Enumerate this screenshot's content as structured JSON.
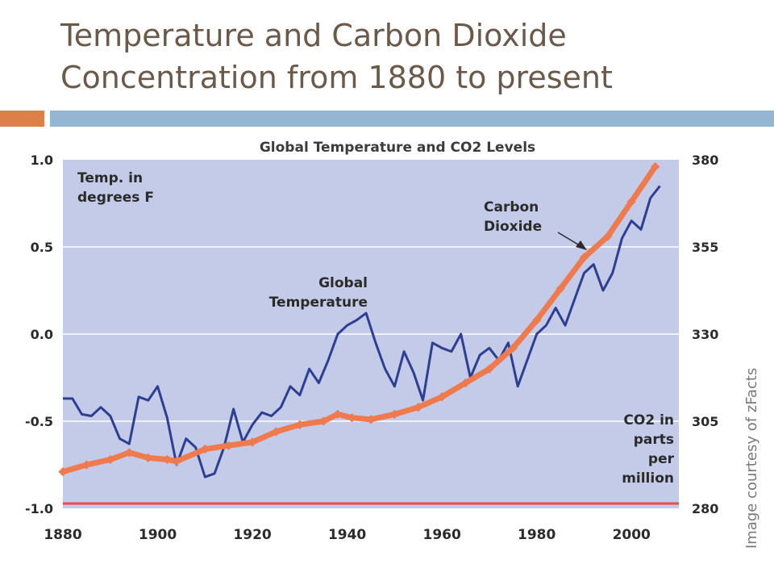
{
  "slide": {
    "title_line1": "Temperature and Carbon Dioxide",
    "title_line2": "Concentration from 1880 to present",
    "accent_orange": "#dd8047",
    "accent_blue": "#94b6d2"
  },
  "chart_data": {
    "type": "line",
    "title": "Global Temperature and CO2 Levels",
    "x_ticks": [
      "1880",
      "1900",
      "1920",
      "1940",
      "1960",
      "1980",
      "2000"
    ],
    "xlim": [
      1880,
      2010
    ],
    "left_axis": {
      "label_lines": [
        "Temp. in",
        "degrees F"
      ],
      "ticks": [
        "1.0",
        "0.5",
        "0.0",
        "-0.5",
        "-1.0"
      ],
      "ylim": [
        -1.0,
        1.0
      ]
    },
    "right_axis": {
      "label_lines": [
        "CO2 in",
        "parts",
        "per",
        "million"
      ],
      "ticks": [
        "380",
        "355",
        "330",
        "305",
        "280"
      ],
      "ylim": [
        280,
        380
      ]
    },
    "plot_background": "#c3cbe8",
    "grid": "horizontal",
    "baseline_color": "#f04a4a",
    "series": [
      {
        "name": "Global Temperature",
        "axis": "left",
        "color": "#2e3f92",
        "x": [
          1880,
          1882,
          1884,
          1886,
          1888,
          1890,
          1892,
          1894,
          1896,
          1898,
          1900,
          1902,
          1904,
          1906,
          1908,
          1910,
          1912,
          1914,
          1916,
          1918,
          1920,
          1922,
          1924,
          1926,
          1928,
          1930,
          1932,
          1934,
          1936,
          1938,
          1940,
          1942,
          1944,
          1946,
          1948,
          1950,
          1952,
          1954,
          1956,
          1958,
          1960,
          1962,
          1964,
          1966,
          1968,
          1970,
          1972,
          1974,
          1976,
          1978,
          1980,
          1982,
          1984,
          1986,
          1988,
          1990,
          1992,
          1994,
          1996,
          1998,
          2000,
          2002,
          2004,
          2006
        ],
        "values": [
          -0.37,
          -0.37,
          -0.46,
          -0.47,
          -0.42,
          -0.47,
          -0.6,
          -0.63,
          -0.36,
          -0.38,
          -0.3,
          -0.48,
          -0.75,
          -0.6,
          -0.65,
          -0.82,
          -0.8,
          -0.65,
          -0.43,
          -0.62,
          -0.52,
          -0.45,
          -0.47,
          -0.42,
          -0.3,
          -0.35,
          -0.2,
          -0.28,
          -0.15,
          0.0,
          0.05,
          0.08,
          0.12,
          -0.05,
          -0.2,
          -0.3,
          -0.1,
          -0.22,
          -0.38,
          -0.05,
          -0.08,
          -0.1,
          0.0,
          -0.25,
          -0.12,
          -0.08,
          -0.15,
          -0.05,
          -0.3,
          -0.15,
          0.0,
          0.05,
          0.15,
          0.05,
          0.2,
          0.35,
          0.4,
          0.25,
          0.35,
          0.55,
          0.65,
          0.6,
          0.78,
          0.85
        ]
      },
      {
        "name": "Carbon Dioxide",
        "axis": "right",
        "color": "#ee7a4d",
        "x": [
          1880,
          1885,
          1890,
          1894,
          1898,
          1902,
          1904,
          1910,
          1915,
          1920,
          1925,
          1930,
          1935,
          1938,
          1941,
          1945,
          1950,
          1955,
          1960,
          1965,
          1970,
          1975,
          1980,
          1985,
          1990,
          1995,
          2000,
          2005
        ],
        "values": [
          290.5,
          292.5,
          294,
          296,
          294.5,
          294,
          293.5,
          297,
          298,
          299,
          302,
          304,
          305,
          307,
          306,
          305.5,
          307,
          309,
          312,
          316,
          320,
          326,
          334,
          343,
          352,
          358,
          368,
          378
        ]
      }
    ],
    "annotations": [
      {
        "lines": [
          "Global",
          "Temperature"
        ],
        "series": "Global Temperature"
      },
      {
        "lines": [
          "Carbon",
          "Dioxide"
        ],
        "series": "Carbon Dioxide"
      }
    ],
    "credit": "Image courtesy of zFacts"
  }
}
